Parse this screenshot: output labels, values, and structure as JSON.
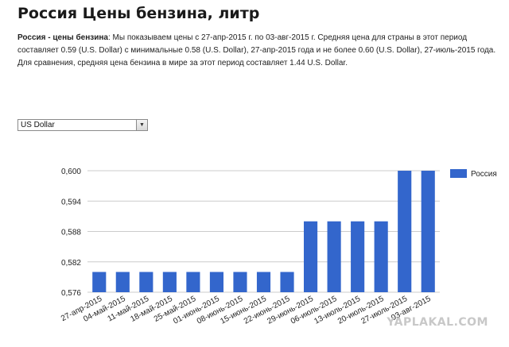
{
  "page": {
    "title": "Россия Цены бензина, литр",
    "description_bold": "Россия - цены бензина",
    "description_rest": ": Мы показываем цены с 27-апр-2015 г. по 03-авг-2015 г. Средняя цена для страны в этот период составляет 0.59 (U.S. Dollar) с минимальные 0.58 (U.S. Dollar), 27-апр-2015 года и не более 0.60 (U.S. Dollar), 27-июль-2015 года. Для сравнения, средняя цена бензина в мире за этот период составляет 1.44 U.S. Dollar.",
    "currency_select": "US Dollar",
    "watermark": "YAPLAKAL.COM"
  },
  "colors": {
    "bar": "#3366cc",
    "grid": "#cccccc",
    "axis_text": "#222222"
  },
  "chart_data": {
    "type": "bar",
    "categories": [
      "27-апр-2015",
      "04-май-2015",
      "11-май-2015",
      "18-май-2015",
      "25-май-2015",
      "01-июнь-2015",
      "08-июнь-2015",
      "15-июнь-2015",
      "22-июнь-2015",
      "29-июнь-2015",
      "06-июль-2015",
      "13-июль-2015",
      "20-июль-2015",
      "27-июль-2015",
      "03-авг-2015"
    ],
    "series": [
      {
        "name": "Россия",
        "values": [
          0.58,
          0.58,
          0.58,
          0.58,
          0.58,
          0.58,
          0.58,
          0.58,
          0.58,
          0.59,
          0.59,
          0.59,
          0.59,
          0.6,
          0.6
        ]
      }
    ],
    "yticks": [
      "0,576",
      "0,582",
      "0,588",
      "0,594",
      "0,600"
    ],
    "ylim": [
      0.576,
      0.6
    ],
    "grid": true,
    "legend": "right"
  }
}
